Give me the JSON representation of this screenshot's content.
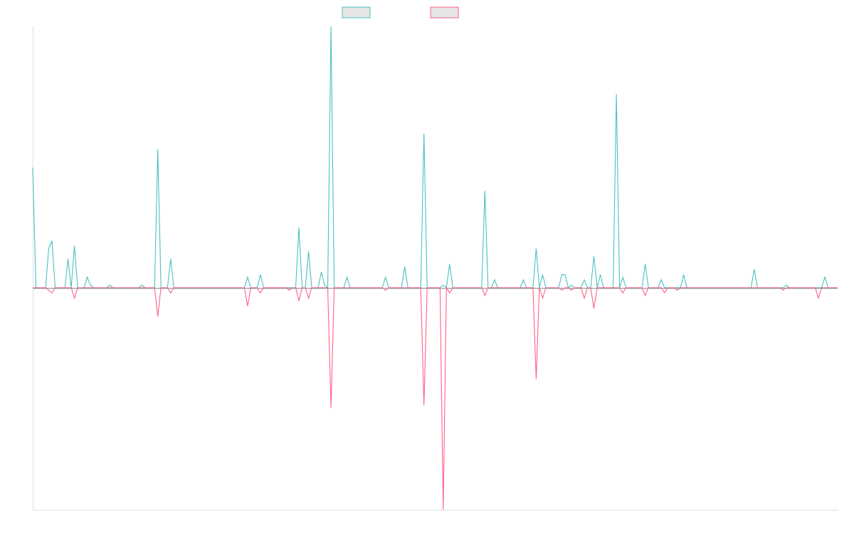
{
  "chart_data": {
    "type": "line",
    "title": "",
    "xlabel": "",
    "ylabel": "",
    "x_count": 252,
    "ylim": [
      -0.85,
      1.0
    ],
    "grid": false,
    "legend_position": "top",
    "series": [
      {
        "color": "#4bc0c0",
        "legend_fill": "#e5e5e5",
        "points": [
          [
            0,
            0.46
          ],
          [
            5,
            0.15
          ],
          [
            6,
            0.18
          ],
          [
            11,
            0.11
          ],
          [
            13,
            0.16
          ],
          [
            17,
            0.04
          ],
          [
            18,
            0.01
          ],
          [
            24,
            0.01
          ],
          [
            34,
            0.01
          ],
          [
            39,
            0.53
          ],
          [
            43,
            0.11
          ],
          [
            67,
            0.04
          ],
          [
            71,
            0.05
          ],
          [
            83,
            0.23
          ],
          [
            86,
            0.14
          ],
          [
            90,
            0.06
          ],
          [
            91,
            0.01
          ],
          [
            93,
            1.0
          ],
          [
            98,
            0.04
          ],
          [
            110,
            0.04
          ],
          [
            116,
            0.08
          ],
          [
            122,
            0.59
          ],
          [
            128,
            0.01
          ],
          [
            130,
            0.09
          ],
          [
            141,
            0.37
          ],
          [
            144,
            0.03
          ],
          [
            153,
            0.03
          ],
          [
            157,
            0.15
          ],
          [
            159,
            0.05
          ],
          [
            165,
            0.05
          ],
          [
            166,
            0.05
          ],
          [
            168,
            0.01
          ],
          [
            172,
            0.03
          ],
          [
            175,
            0.12
          ],
          [
            177,
            0.05
          ],
          [
            182,
            0.74
          ],
          [
            184,
            0.04
          ],
          [
            191,
            0.09
          ],
          [
            196,
            0.03
          ],
          [
            203,
            0.05
          ],
          [
            225,
            0.07
          ],
          [
            235,
            0.01
          ],
          [
            247,
            0.04
          ]
        ]
      },
      {
        "color": "#ff6384",
        "legend_fill": "#e5e5e5",
        "points": [
          [
            5,
            -0.01
          ],
          [
            6,
            -0.02
          ],
          [
            13,
            -0.04
          ],
          [
            39,
            -0.11
          ],
          [
            43,
            -0.02
          ],
          [
            67,
            -0.07
          ],
          [
            71,
            -0.02
          ],
          [
            80,
            -0.01
          ],
          [
            83,
            -0.05
          ],
          [
            86,
            -0.04
          ],
          [
            93,
            -0.46
          ],
          [
            110,
            -0.01
          ],
          [
            122,
            -0.45
          ],
          [
            128,
            -0.85
          ],
          [
            130,
            -0.02
          ],
          [
            141,
            -0.03
          ],
          [
            157,
            -0.35
          ],
          [
            159,
            -0.04
          ],
          [
            165,
            -0.01
          ],
          [
            168,
            -0.01
          ],
          [
            172,
            -0.04
          ],
          [
            175,
            -0.08
          ],
          [
            184,
            -0.02
          ],
          [
            191,
            -0.03
          ],
          [
            197,
            -0.02
          ],
          [
            201,
            -0.01
          ],
          [
            234,
            -0.01
          ],
          [
            245,
            -0.04
          ]
        ]
      }
    ]
  }
}
